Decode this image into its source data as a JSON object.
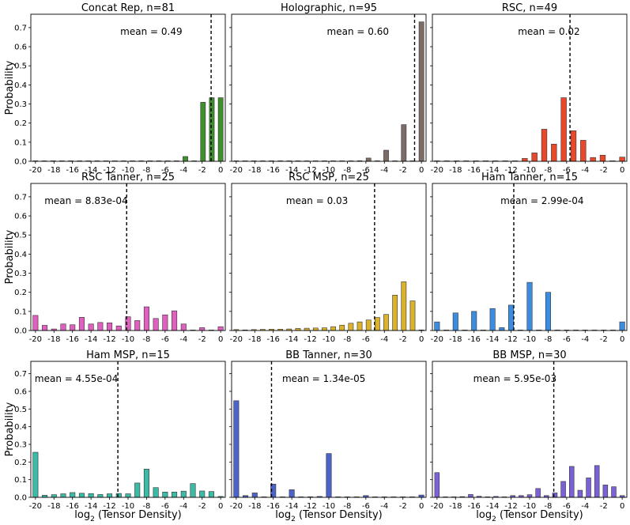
{
  "chart_data": [
    {
      "type": "bar",
      "title": "Concat Rep, n=81",
      "mean_label": "mean = 0.49",
      "mean_x": -1.03,
      "color": "#3f8f2f",
      "values": [
        0,
        0,
        0,
        0,
        0,
        0,
        0,
        0,
        0,
        0,
        0,
        0,
        0,
        0,
        0,
        0,
        0,
        0.025,
        0,
        0.309,
        0.333,
        0.333
      ]
    },
    {
      "type": "bar",
      "title": "Holographic, n=95",
      "mean_label": "mean = 0.60",
      "mean_x": -0.74,
      "color": "#7c6b67",
      "values": [
        0,
        0,
        0,
        0,
        0,
        0,
        0,
        0,
        0,
        0,
        0.001,
        0,
        0.001,
        0,
        0.003,
        0.017,
        0,
        0.058,
        0,
        0.192,
        0,
        0.73
      ]
    },
    {
      "type": "bar",
      "title": "RSC, n=49",
      "mean_label": "mean = 0.02",
      "mean_x": -5.64,
      "color": "#e8492a",
      "values": [
        0,
        0,
        0,
        0,
        0,
        0,
        0,
        0,
        0,
        0.015,
        0.044,
        0.168,
        0.09,
        0.333,
        0.16,
        0.11,
        0.02,
        0.032,
        0,
        0.022
      ]
    },
    {
      "type": "bar",
      "title": "RSC Tanner, n=25",
      "mean_label": "mean = 8.83e-04",
      "mean_x": -10.15,
      "color": "#e060c0",
      "values": [
        0.079,
        0.027,
        0.008,
        0.034,
        0.03,
        0.069,
        0.034,
        0.042,
        0.04,
        0.024,
        0.072,
        0.052,
        0.124,
        0.063,
        0.082,
        0.103,
        0.034,
        0,
        0.015,
        0,
        0.02
      ]
    },
    {
      "type": "bar",
      "title": "RSC MSP, n=25",
      "mean_label": "mean = 0.03",
      "mean_x": -5.06,
      "color": "#dab22c",
      "values": [
        0.005,
        0.003,
        0.005,
        0.006,
        0.007,
        0.007,
        0.008,
        0.011,
        0.012,
        0.013,
        0.014,
        0.02,
        0.028,
        0.038,
        0.045,
        0.055,
        0.068,
        0.084,
        0.185,
        0.255,
        0.155,
        0.003
      ]
    },
    {
      "type": "bar",
      "title": "Ham Tanner, n=15",
      "mean_label": "mean = 2.99e-04",
      "mean_x": -11.71,
      "color": "#3b8de0",
      "values": [
        0.045,
        0,
        0.092,
        0,
        0.1,
        0,
        0.115,
        0.015,
        0.133,
        0,
        0.252,
        0,
        0.2,
        0,
        0,
        0,
        0,
        0,
        0,
        0,
        0.045
      ]
    },
    {
      "type": "bar",
      "title": "Ham MSP, n=15",
      "mean_label": "mean = 4.55e-04",
      "mean_x": -11.1,
      "color": "#3dbaa6",
      "values": [
        0.255,
        0.012,
        0.015,
        0.02,
        0.027,
        0.023,
        0.021,
        0.016,
        0.02,
        0.022,
        0.02,
        0.081,
        0.16,
        0.055,
        0.03,
        0.03,
        0.035,
        0.078,
        0.036,
        0.033,
        0.005
      ]
    },
    {
      "type": "bar",
      "title": "BB Tanner, n=30",
      "mean_label": "mean = 1.34e-05",
      "mean_x": -16.19,
      "color": "#4c63c8",
      "values": [
        0.547,
        0.01,
        0.025,
        0,
        0.075,
        0,
        0.043,
        0,
        0.003,
        0.005,
        0.248,
        0,
        0,
        0,
        0.01,
        0,
        0,
        0,
        0,
        0,
        0.013
      ]
    },
    {
      "type": "bar",
      "title": "BB MSP, n=30",
      "mean_label": "mean = 5.95e-03",
      "mean_x": -7.39,
      "color": "#7b60d6",
      "values": [
        0.14,
        0,
        0,
        0.004,
        0.016,
        0.006,
        0,
        0.005,
        0,
        0.01,
        0.01,
        0.015,
        0.05,
        0.01,
        0.025,
        0.09,
        0.175,
        0.04,
        0.11,
        0.18,
        0.07,
        0.06,
        0.01
      ]
    }
  ],
  "shared": {
    "ylabel": "Probability",
    "xlabel_main": "log",
    "xlabel_sub": "2",
    "xlabel_rest": " (Tensor Density)",
    "xticks": [
      -20,
      -18,
      -16,
      -14,
      -12,
      -10,
      -8,
      -6,
      -4,
      -2,
      0
    ],
    "yticks": [
      "0.0",
      "0.1",
      "0.2",
      "0.3",
      "0.4",
      "0.5",
      "0.6",
      "0.7"
    ],
    "ylim": [
      0,
      0.77
    ],
    "xlim": [
      -20.5,
      0.5
    ]
  }
}
